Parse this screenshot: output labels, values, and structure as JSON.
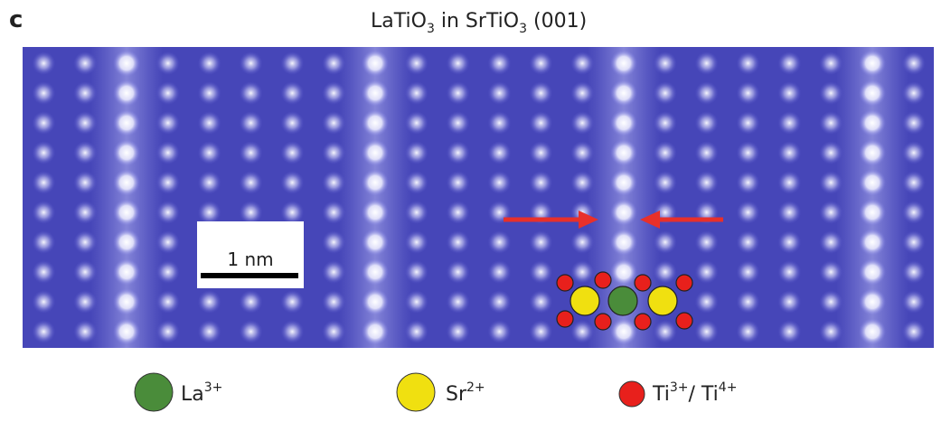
{
  "panel_label": "c",
  "title": {
    "parts": [
      "LaTiO",
      "3",
      " in SrTiO",
      "3",
      " (001)"
    ]
  },
  "scale_bar": {
    "label": "1 nm"
  },
  "legend": [
    {
      "symbol": "La",
      "charge": "3+"
    },
    {
      "symbol": "Sr",
      "charge": "2+"
    },
    {
      "symbol": "Ti",
      "charge": "3+",
      "separator": "/ ",
      "symbol2": "Ti",
      "charge2": "4+"
    }
  ]
}
